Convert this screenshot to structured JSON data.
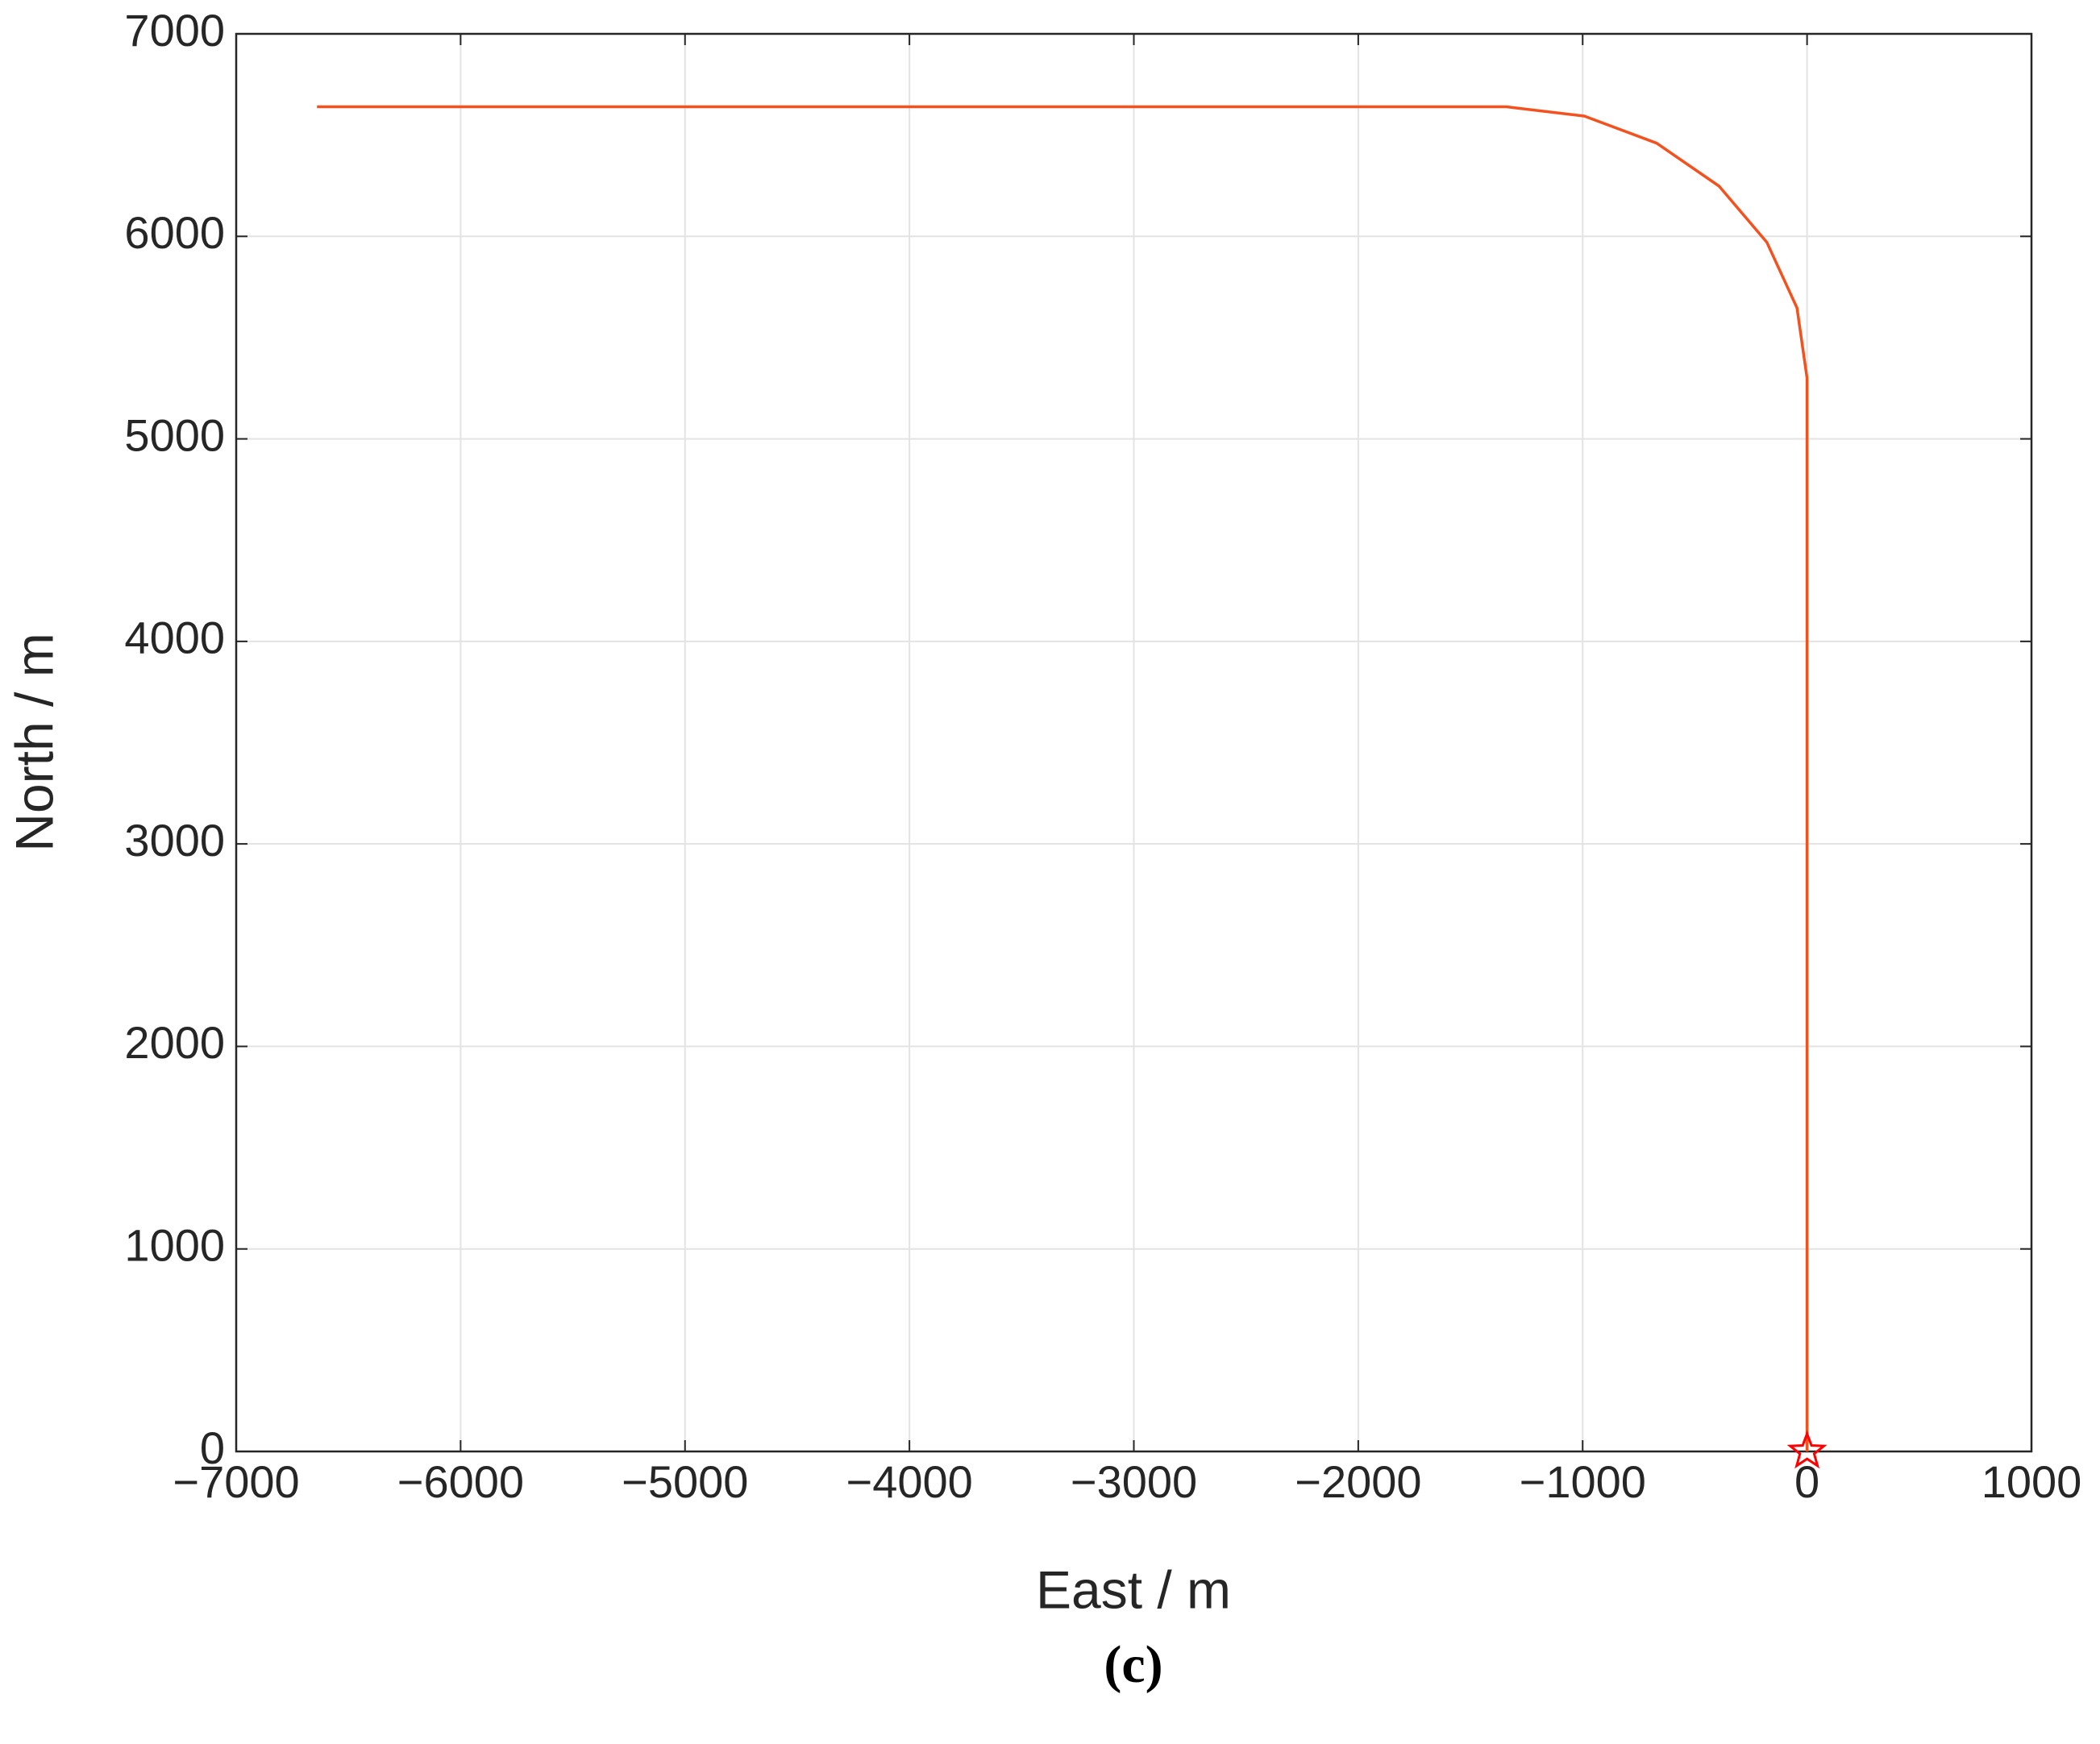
{
  "chart_data": {
    "type": "line",
    "xlabel": "East / m",
    "ylabel": "North / m",
    "caption": "(c)",
    "series": [
      {
        "color": "#f4511e",
        "marker": "none",
        "x": [
          0,
          0,
          -45,
          -179,
          -392,
          -670,
          -993,
          -1340,
          -6640
        ],
        "values": [
          0,
          5300,
          5647,
          5970,
          6248,
          6460,
          6594,
          6640,
          6640
        ]
      },
      {
        "color": "#ff0000",
        "marker": "star",
        "x": [
          0
        ],
        "values": [
          0
        ]
      }
    ],
    "xlim": [
      -7000,
      1000
    ],
    "xticks": [
      {
        "value": -7000,
        "label": "−7000"
      },
      {
        "value": -6000,
        "label": "−6000"
      },
      {
        "value": -5000,
        "label": "−5000"
      },
      {
        "value": -4000,
        "label": "−4000"
      },
      {
        "value": -3000,
        "label": "−3000"
      },
      {
        "value": -2000,
        "label": "−2000"
      },
      {
        "value": -1000,
        "label": "−1000"
      },
      0,
      1000
    ],
    "ylim": [
      0,
      7000
    ],
    "yticks": [
      0,
      1000,
      2000,
      3000,
      4000,
      5000,
      6000,
      7000
    ],
    "grid": true
  }
}
